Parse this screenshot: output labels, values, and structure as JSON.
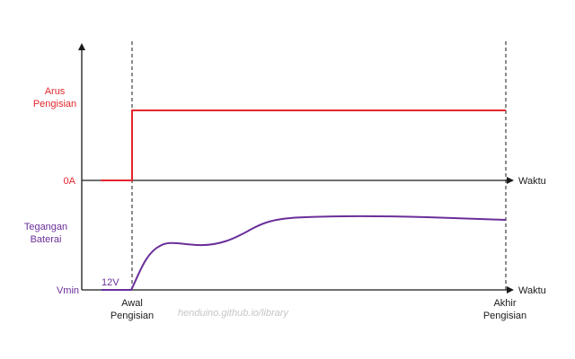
{
  "diagram": {
    "current_label_line1": "Arus",
    "current_label_line2": "Pengisian",
    "zero_current_label": "0A",
    "voltage_label_line1": "Tegangan",
    "voltage_label_line2": "Baterai",
    "vmin_label": "Vmin",
    "voltage_start_label": "12V",
    "time_axis_label_top": "Waktu",
    "time_axis_label_bottom": "Waktu",
    "start_marker_line1": "Awal",
    "start_marker_line2": "Pengisian",
    "end_marker_line1": "Akhir",
    "end_marker_line2": "Pengisian",
    "watermark": "henduino.github.io/library",
    "colors": {
      "current": "#e3262d",
      "voltage": "#6a2f9a",
      "axis": "#1a1a1a",
      "watermark": "#c6c6c6"
    }
  }
}
